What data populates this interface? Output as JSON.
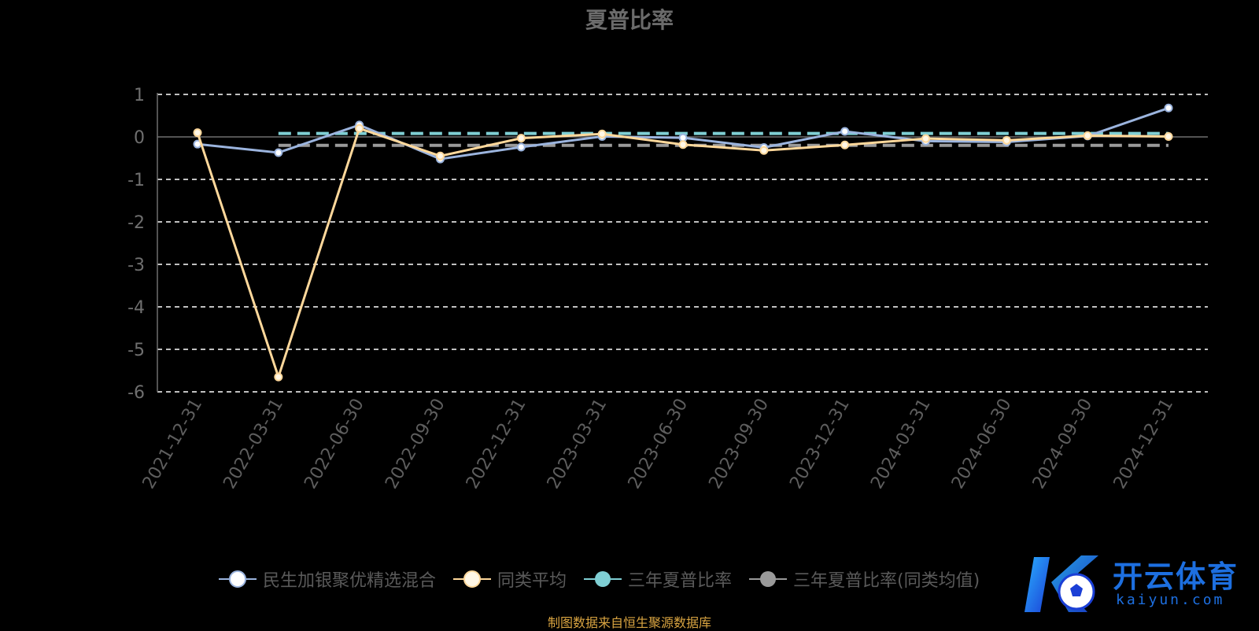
{
  "page": {
    "title": "夏普比率",
    "source_note": "制图数据来自恒生聚源数据库"
  },
  "watermark": {
    "brand_text": "开云体育",
    "brand_sub": "kaiyun.com",
    "logo_letter": "K"
  },
  "legend": [
    {
      "label": "民生加银聚优精选混合",
      "color": "#9bb4de",
      "marker_fill": "#ffffff"
    },
    {
      "label": "同类平均",
      "color": "#ffd89b",
      "marker_fill": "#fff7e6"
    },
    {
      "label": "三年夏普比率",
      "color": "#7fcfd4",
      "marker_fill": "#7fcfd4"
    },
    {
      "label": "三年夏普比率(同类均值)",
      "color": "#9a9a9a",
      "marker_fill": "#9a9a9a"
    }
  ],
  "chart_data": {
    "type": "line",
    "title": "夏普比率",
    "x": [
      "2021-12-31",
      "2022-03-31",
      "2022-06-30",
      "2022-09-30",
      "2022-12-31",
      "2023-03-31",
      "2023-06-30",
      "2023-09-30",
      "2023-12-31",
      "2024-03-31",
      "2024-06-30",
      "2024-09-30",
      "2024-12-31"
    ],
    "ylim": [
      -6,
      1
    ],
    "yticks": [
      1,
      0,
      -1,
      -2,
      -3,
      -4,
      -5,
      -6
    ],
    "grid": true,
    "legend_position": "bottom",
    "series": [
      {
        "name": "民生加银聚优精选混合",
        "color": "#9bb4de",
        "values": [
          -0.17,
          -0.37,
          0.28,
          -0.52,
          -0.24,
          0.01,
          -0.02,
          -0.25,
          0.13,
          -0.1,
          -0.12,
          0.02,
          0.68
        ]
      },
      {
        "name": "同类平均",
        "color": "#ffd89b",
        "values": [
          0.1,
          -5.65,
          0.2,
          -0.45,
          -0.03,
          0.07,
          -0.18,
          -0.32,
          -0.19,
          -0.04,
          -0.08,
          0.03,
          0.01
        ]
      },
      {
        "name": "三年夏普比率",
        "color": "#7fcfd4",
        "dashed": true,
        "from_index": 1,
        "values": [
          null,
          0.08,
          0.08,
          0.08,
          0.08,
          0.08,
          0.08,
          0.08,
          0.08,
          0.08,
          0.08,
          0.08,
          0.08
        ]
      },
      {
        "name": "三年夏普比率(同类均值)",
        "color": "#9a9a9a",
        "dashed": true,
        "from_index": 1,
        "values": [
          null,
          -0.2,
          -0.2,
          -0.2,
          -0.2,
          -0.2,
          -0.2,
          -0.2,
          -0.2,
          -0.2,
          -0.2,
          -0.2,
          -0.2
        ]
      }
    ]
  }
}
